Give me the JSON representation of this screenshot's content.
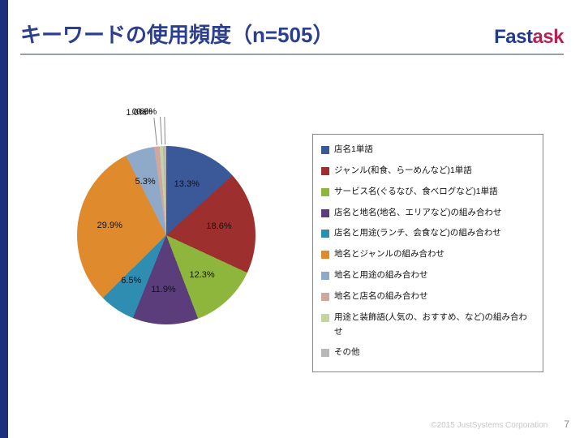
{
  "header": {
    "title": "キーワードの使用頻度（n=505）",
    "title_color": "#2c3e8f",
    "border_color": "#9aa0a6",
    "logo_prefix": "Fast",
    "logo_suffix": "ask",
    "logo_prefix_color": "#223a8f",
    "logo_suffix_color": "#b32456"
  },
  "left_bar_color": "#1b2f7a",
  "chart": {
    "type": "pie",
    "background_color": "#ffffff",
    "slices": [
      {
        "label": "店名1単語",
        "value": 13.3,
        "color": "#3b5998",
        "text": "13.3%"
      },
      {
        "label": "ジャンル(和食、らーめんなど)1単語",
        "value": 18.6,
        "color": "#9e2f2f",
        "text": "18.6%"
      },
      {
        "label": "サービス名(ぐるなび、食べログなど)1単語",
        "value": 12.3,
        "color": "#8fb63c",
        "text": "12.3%"
      },
      {
        "label": "店名と地名(地名、エリアなど)の組み合わせ",
        "value": 11.9,
        "color": "#5a3d7a",
        "text": "11.9%"
      },
      {
        "label": "店名と用途(ランチ、会食など)の組み合わせ",
        "value": 6.5,
        "color": "#2e8db0",
        "text": "6.5%"
      },
      {
        "label": "地名とジャンルの組み合わせ",
        "value": 29.9,
        "color": "#e08a2e",
        "text": "29.9%"
      },
      {
        "label": "地名と用途の組み合わせ",
        "value": 5.3,
        "color": "#8fa9c9",
        "text": "5.3%"
      },
      {
        "label": "地名と店名の組み合わせ",
        "value": 1.0,
        "color": "#d0a7a0",
        "text": "1.0%"
      },
      {
        "label": "用途と装飾語(人気の、おすすめ、など)の組み合わせ",
        "value": 0.6,
        "color": "#c6d4a3",
        "text": "0.6%"
      },
      {
        "label": "その他",
        "value": 0.6,
        "color": "#b8b8b8",
        "text": "0.6%"
      }
    ],
    "label_fontsize": 11,
    "label_color": "#111111",
    "leader_line_color": "#888888"
  },
  "legend": {
    "border_color": "#888888",
    "fontsize": 10.5,
    "text_color": "#111111"
  },
  "footer": {
    "copyright": "©2015 JustSystems Corporation",
    "copyright_color": "#c7c7c7",
    "page_number": "7",
    "pagenum_color": "#888888"
  }
}
